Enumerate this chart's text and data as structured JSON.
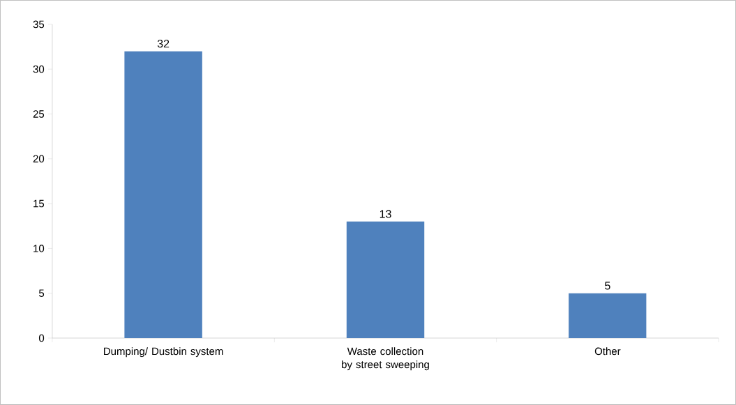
{
  "chart_data": {
    "type": "bar",
    "categories": [
      "Dumping/ Dustbin system",
      "Waste collection by street sweeping",
      "Other"
    ],
    "values": [
      32,
      13,
      5
    ],
    "color": "#4f81bd",
    "ylim": [
      0,
      35
    ],
    "yticks": [
      0,
      5,
      10,
      15,
      20,
      25,
      30,
      35
    ],
    "data_labels": true
  }
}
